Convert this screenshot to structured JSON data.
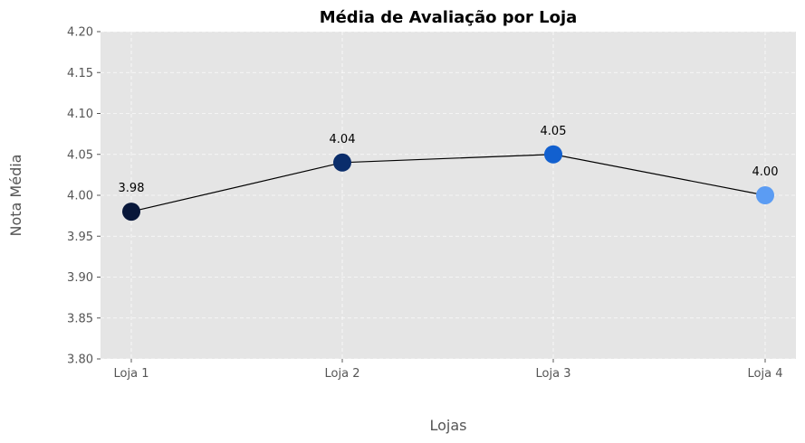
{
  "chart_data": {
    "type": "line",
    "title": "Média de Avaliação por Loja",
    "xlabel": "Lojas",
    "ylabel": "Nota Média",
    "categories": [
      "Loja 1",
      "Loja 2",
      "Loja 3",
      "Loja 4"
    ],
    "values": [
      3.98,
      4.04,
      4.05,
      4.0
    ],
    "data_labels": [
      "3.98",
      "4.04",
      "4.05",
      "4.00"
    ],
    "point_colors": [
      "#08173a",
      "#0a2d6b",
      "#1260cf",
      "#5b9cf3"
    ],
    "line_color": "#000000",
    "background_color": "#e5e5e5",
    "ylim": [
      3.8,
      4.2
    ],
    "yticks": [
      3.8,
      3.85,
      3.9,
      3.95,
      4.0,
      4.05,
      4.1,
      4.15,
      4.2
    ],
    "ytick_labels": [
      "3.80",
      "3.85",
      "3.90",
      "3.95",
      "4.00",
      "4.05",
      "4.10",
      "4.15",
      "4.20"
    ],
    "grid": true
  }
}
